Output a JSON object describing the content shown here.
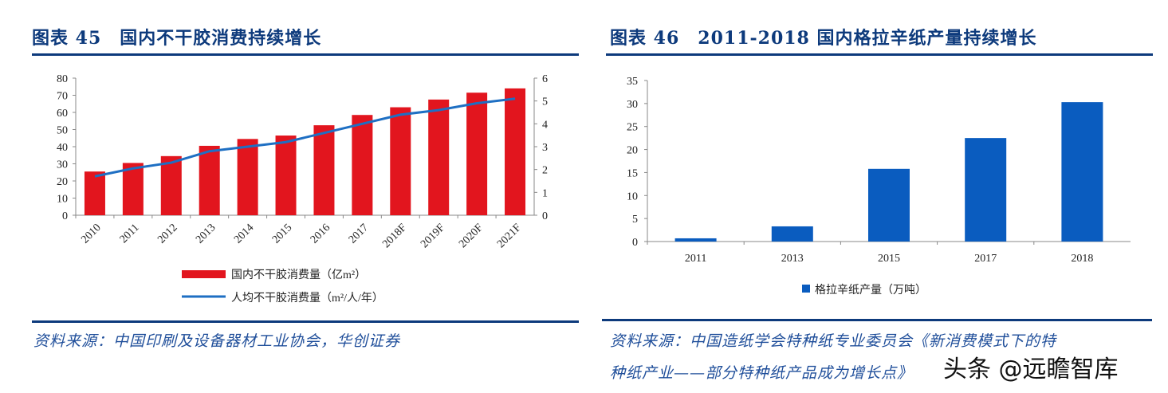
{
  "left": {
    "title": "图表 45　国内不干胶消费持续增长",
    "source": "资料来源：中国印刷及设备器材工业协会，华创证券"
  },
  "right": {
    "title": "图表 46　2011-2018 国内格拉辛纸产量持续增长",
    "source_line1": "资料来源：中国造纸学会特种纸专业委员会《新消费模式下的特",
    "source_line2": "种纸产业——部分特种纸产品成为增长点》"
  },
  "watermark": "头条 @远瞻智库",
  "colors": {
    "bar_red": "#e2151e",
    "line_blue": "#1e6fc3",
    "bar_blue": "#0a5cbf",
    "accent": "#0d3a7c"
  },
  "chart_data": [
    {
      "type": "bar",
      "categories": [
        "2010",
        "2011",
        "2012",
        "2013",
        "2014",
        "2015",
        "2016",
        "2017",
        "2018F",
        "2019F",
        "2020F",
        "2021F"
      ],
      "series": [
        {
          "name": "国内不干胶消费量（亿m²）",
          "type": "bar",
          "axis": "left",
          "values": [
            25.5,
            30.5,
            34.5,
            40.5,
            44.5,
            46.5,
            52.5,
            58.5,
            63,
            67.5,
            71.5,
            74
          ]
        },
        {
          "name": "人均不干胶消费量（m²/人/年）",
          "type": "line",
          "axis": "right",
          "values": [
            1.7,
            2.05,
            2.3,
            2.8,
            3.0,
            3.2,
            3.6,
            4.0,
            4.4,
            4.6,
            4.9,
            5.1
          ]
        }
      ],
      "ylim": [
        0,
        80
      ],
      "yticks": [
        "0",
        "10",
        "20",
        "30",
        "40",
        "50",
        "60",
        "70",
        "80"
      ],
      "y2lim": [
        0,
        6
      ],
      "y2ticks": [
        "0",
        "1",
        "2",
        "3",
        "4",
        "5",
        "6"
      ],
      "legend": "bottom"
    },
    {
      "type": "bar",
      "categories": [
        "2011",
        "2013",
        "2015",
        "2017",
        "2018"
      ],
      "series": [
        {
          "name": "格拉辛纸产量（万吨）",
          "values": [
            0.7,
            3.3,
            15.8,
            22.5,
            30.3
          ]
        }
      ],
      "ylim": [
        0,
        35
      ],
      "yticks": [
        "0",
        "5",
        "10",
        "15",
        "20",
        "25",
        "30",
        "35"
      ],
      "legend": "bottom"
    }
  ]
}
